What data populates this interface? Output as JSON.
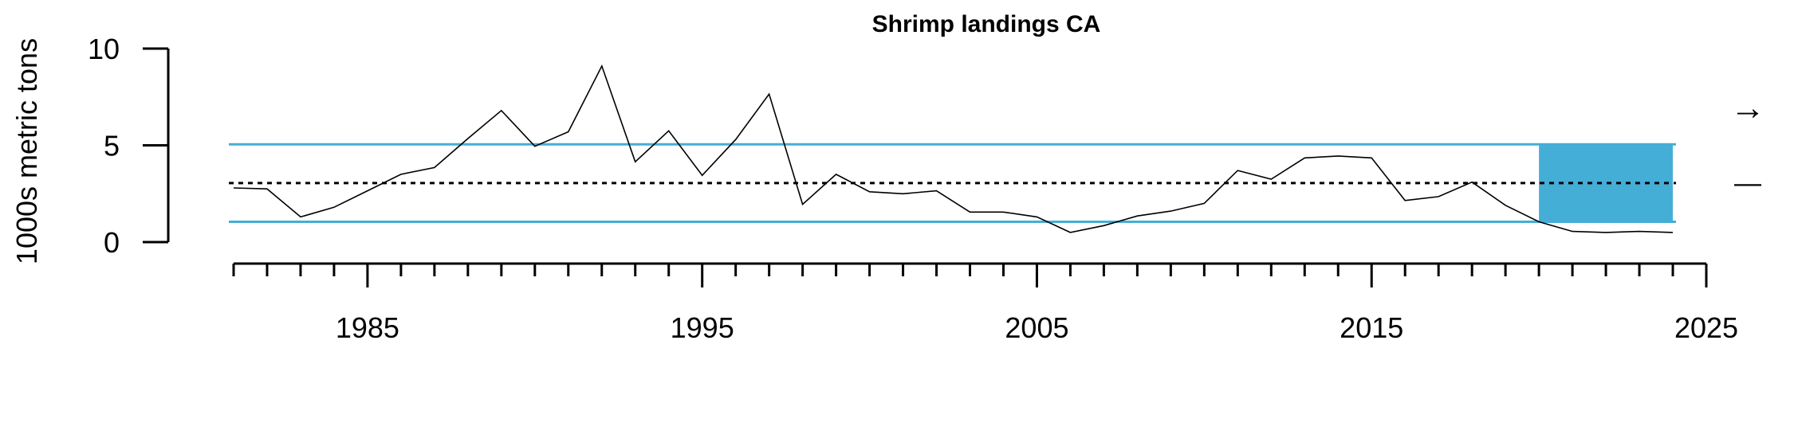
{
  "chart_data": {
    "type": "line",
    "title": "Shrimp landings CA",
    "xlabel": "",
    "ylabel": "1000s metric tons",
    "xlim": [
      1981,
      2025
    ],
    "ylim": [
      0,
      10
    ],
    "x_ticks": [
      1985,
      1995,
      2005,
      2015,
      2025
    ],
    "y_ticks": [
      0,
      5,
      10
    ],
    "series": [
      {
        "x": [
          1981,
          1982,
          1983,
          1984,
          1985,
          1986,
          1987,
          1988,
          1989,
          1990,
          1991,
          1992,
          1993,
          1994,
          1995,
          1996,
          1997,
          1998,
          1999,
          2000,
          2001,
          2002,
          2003,
          2004,
          2005,
          2006,
          2007,
          2008,
          2009,
          2010,
          2011,
          2012,
          2013,
          2014,
          2015,
          2016,
          2017,
          2018,
          2019,
          2020,
          2021,
          2022,
          2023,
          2024
        ],
        "values": [
          2.8,
          2.75,
          1.3,
          1.8,
          2.65,
          3.5,
          3.85,
          5.35,
          6.8,
          4.95,
          5.7,
          9.1,
          4.15,
          5.75,
          3.45,
          5.3,
          7.65,
          1.95,
          3.5,
          2.6,
          2.5,
          2.65,
          1.55,
          1.55,
          1.3,
          0.5,
          0.85,
          1.35,
          1.6,
          2.0,
          3.7,
          3.25,
          4.35,
          4.45,
          4.35,
          2.15,
          2.35,
          3.1,
          1.9,
          1.05,
          0.55,
          0.5,
          0.55,
          0.5
        ]
      }
    ],
    "reference_lines": {
      "mean": 3.05,
      "upper_sd": 5.05,
      "lower_sd": 1.05
    },
    "highlight_window": {
      "x_start": 2020,
      "x_end": 2024
    },
    "trend_indicators": {
      "mean_symbol": "→",
      "trend_symbol": "—"
    },
    "colors": {
      "sd_line": "#45aed6",
      "highlight": "#45aed6",
      "series": "#000000",
      "mean_line": "#000000"
    }
  }
}
